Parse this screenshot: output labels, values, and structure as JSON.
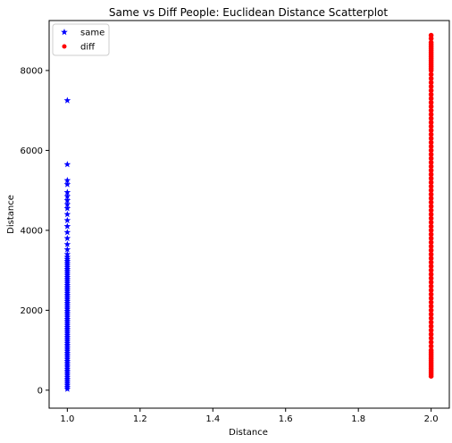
{
  "chart_data": {
    "type": "scatter",
    "title": "Same vs Diff People: Euclidean Distance Scatterplot",
    "xlabel": "Distance",
    "ylabel": "Distance",
    "xlim": [
      0.95,
      2.05
    ],
    "ylim": [
      -450,
      9250
    ],
    "xticks": [
      1.0,
      1.2,
      1.4,
      1.6,
      1.8,
      2.0
    ],
    "xtick_labels": [
      "1.0",
      "1.2",
      "1.4",
      "1.6",
      "1.8",
      "2.0"
    ],
    "yticks": [
      0,
      2000,
      4000,
      6000,
      8000
    ],
    "ytick_labels": [
      "0",
      "2000",
      "4000",
      "6000",
      "8000"
    ],
    "legend_position": "top-left",
    "series": [
      {
        "name": "same",
        "marker": "star",
        "color": "#0000ff",
        "x": [
          1.0,
          1.0,
          1.0,
          1.0,
          1.0,
          1.0,
          1.0,
          1.0,
          1.0,
          1.0,
          1.0,
          1.0,
          1.0,
          1.0,
          1.0,
          1.0,
          1.0,
          1.0,
          1.0,
          1.0,
          1.0,
          1.0,
          1.0,
          1.0,
          1.0,
          1.0,
          1.0,
          1.0,
          1.0,
          1.0,
          1.0,
          1.0,
          1.0,
          1.0,
          1.0,
          1.0,
          1.0,
          1.0,
          1.0,
          1.0,
          1.0,
          1.0,
          1.0,
          1.0,
          1.0,
          1.0,
          1.0,
          1.0,
          1.0,
          1.0,
          1.0,
          1.0,
          1.0,
          1.0,
          1.0,
          1.0,
          1.0,
          1.0,
          1.0,
          1.0,
          1.0,
          1.0,
          1.0,
          1.0,
          1.0,
          1.0,
          1.0,
          1.0,
          1.0,
          1.0,
          1.0,
          1.0,
          1.0,
          1.0,
          1.0,
          1.0
        ],
        "y": [
          30,
          80,
          130,
          180,
          230,
          280,
          330,
          380,
          430,
          480,
          530,
          580,
          630,
          680,
          730,
          780,
          830,
          880,
          930,
          980,
          1030,
          1080,
          1130,
          1180,
          1230,
          1280,
          1330,
          1380,
          1430,
          1480,
          1530,
          1580,
          1630,
          1680,
          1730,
          1780,
          1830,
          1880,
          1930,
          1980,
          2030,
          2080,
          2130,
          2180,
          2230,
          2280,
          2330,
          2380,
          2430,
          2480,
          2530,
          2580,
          2630,
          2680,
          2730,
          2780,
          2830,
          2880,
          2930,
          2980,
          3030,
          3080,
          3130,
          3180,
          3230,
          3280,
          3330,
          3400,
          3520,
          3650,
          3800,
          3950,
          4100,
          4250,
          4400,
          4550
        ]
      },
      {
        "name": "diff",
        "marker": "circle",
        "color": "#ff0000",
        "x": [
          2.0,
          2.0,
          2.0,
          2.0,
          2.0,
          2.0,
          2.0,
          2.0,
          2.0,
          2.0,
          2.0,
          2.0,
          2.0,
          2.0,
          2.0,
          2.0,
          2.0,
          2.0,
          2.0,
          2.0,
          2.0,
          2.0,
          2.0,
          2.0,
          2.0,
          2.0,
          2.0,
          2.0,
          2.0,
          2.0,
          2.0,
          2.0,
          2.0,
          2.0,
          2.0,
          2.0,
          2.0,
          2.0,
          2.0,
          2.0,
          2.0,
          2.0,
          2.0,
          2.0,
          2.0,
          2.0,
          2.0,
          2.0,
          2.0,
          2.0,
          2.0,
          2.0,
          2.0,
          2.0,
          2.0,
          2.0,
          2.0,
          2.0,
          2.0,
          2.0,
          2.0,
          2.0,
          2.0,
          2.0,
          2.0,
          2.0,
          2.0,
          2.0,
          2.0,
          2.0,
          2.0,
          2.0,
          2.0,
          2.0,
          2.0,
          2.0,
          2.0,
          2.0,
          2.0,
          2.0,
          2.0,
          2.0,
          2.0,
          2.0,
          2.0,
          2.0,
          2.0,
          2.0,
          2.0,
          2.0,
          2.0,
          2.0,
          2.0,
          2.0,
          2.0,
          2.0,
          2.0,
          2.0,
          2.0,
          2.0
        ],
        "y": [
          350,
          400,
          450,
          500,
          550,
          600,
          650,
          700,
          750,
          800,
          850,
          900,
          950,
          1000,
          1100,
          1200,
          1300,
          1400,
          1500,
          1600,
          1700,
          1800,
          1900,
          2000,
          2100,
          2200,
          2300,
          2400,
          2500,
          2600,
          2700,
          2800,
          2900,
          3000,
          3100,
          3200,
          3300,
          3400,
          3500,
          3600,
          3700,
          3800,
          3900,
          4000,
          4100,
          4200,
          4300,
          4400,
          4500,
          4600,
          4700,
          4800,
          4900,
          5000,
          5100,
          5200,
          5300,
          5400,
          5500,
          5600,
          5700,
          5800,
          5900,
          6000,
          6100,
          6200,
          6300,
          6400,
          6500,
          6600,
          6700,
          6800,
          6900,
          7000,
          7100,
          7200,
          7300,
          7400,
          7500,
          7600,
          7700,
          7800,
          7900,
          8000,
          8050,
          8100,
          8150,
          8200,
          8250,
          8300,
          8350,
          8400,
          8450,
          8500,
          8550,
          8600,
          8650,
          8700,
          8800,
          8880
        ]
      }
    ],
    "outliers": [
      {
        "series": "same",
        "x": 1.0,
        "y": 4650
      },
      {
        "series": "same",
        "x": 1.0,
        "y": 4750
      },
      {
        "series": "same",
        "x": 1.0,
        "y": 4850
      },
      {
        "series": "same",
        "x": 1.0,
        "y": 4950
      },
      {
        "series": "same",
        "x": 1.0,
        "y": 5150
      },
      {
        "series": "same",
        "x": 1.0,
        "y": 5250
      },
      {
        "series": "same",
        "x": 1.0,
        "y": 5650
      },
      {
        "series": "same",
        "x": 1.0,
        "y": 7250
      }
    ]
  }
}
